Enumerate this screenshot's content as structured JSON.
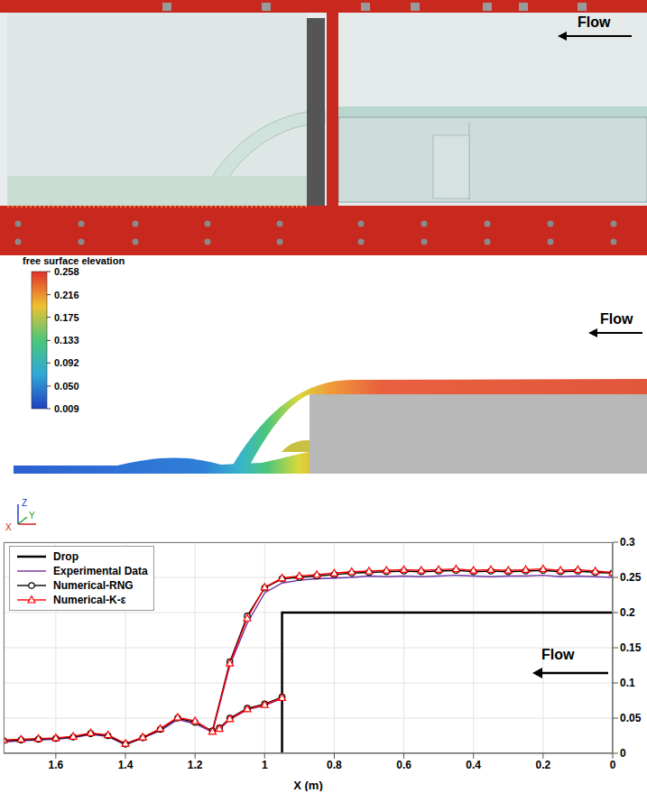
{
  "photo": {
    "annotation": "Flow"
  },
  "simulation": {
    "colorbar": {
      "title": "free surface elevation",
      "range": [
        0.009,
        0.258
      ],
      "ticks": [
        0.258,
        0.216,
        0.175,
        0.133,
        0.092,
        {
          "value": 0.05,
          "label": "0.050"
        },
        0.009
      ]
    },
    "annotation": "Flow",
    "axis_triad": [
      "Z",
      "X",
      "Y"
    ]
  },
  "chart_data": {
    "type": "line",
    "x_label": "X (m)",
    "annotation": "Flow",
    "xlim": [
      1.75,
      0
    ],
    "xticks": [
      1.6,
      1.4,
      1.2,
      1,
      0.8,
      0.6,
      0.4,
      0.2,
      0
    ],
    "ylim": [
      0,
      0.3
    ],
    "yticks": [
      0,
      0.05,
      0.1,
      0.15,
      0.2,
      0.25,
      0.3
    ],
    "grid": true,
    "legend": "top-left",
    "x": [
      0,
      0.05,
      0.1,
      0.15,
      0.2,
      0.25,
      0.3,
      0.35,
      0.4,
      0.45,
      0.5,
      0.55,
      0.6,
      0.65,
      0.7,
      0.75,
      0.8,
      0.85,
      0.9,
      0.95,
      1,
      1.05,
      1.1,
      1.15,
      1.2,
      1.25,
      1.3,
      1.35,
      1.4,
      1.45,
      1.5,
      1.55,
      1.6,
      1.65,
      1.7,
      1.75,
      null,
      0.95,
      1,
      1.05,
      1.1,
      1.13
    ],
    "series": [
      {
        "name": "Drop",
        "color": "#000000",
        "line_style": "thick",
        "x": [
          0,
          0.95,
          0.95
        ],
        "values": [
          0.2,
          0.2,
          0
        ]
      },
      {
        "name": "Experimental Data",
        "color": "#7030a0",
        "values": [
          0.25,
          0.251,
          0.252,
          0.251,
          0.253,
          0.252,
          0.252,
          0.251,
          0.252,
          0.253,
          0.252,
          0.251,
          0.252,
          0.251,
          0.252,
          0.25,
          0.249,
          0.248,
          0.246,
          0.242,
          0.228,
          0.185,
          0.125,
          0.03,
          0.042,
          0.048,
          0.032,
          0.022,
          0.012,
          0.024,
          0.027,
          0.022,
          0.02,
          0.019,
          0.018,
          0.016,
          null,
          0.078,
          0.068,
          0.062,
          0.048,
          0.034
        ]
      },
      {
        "name": "Numerical-RNG",
        "color": "#000000",
        "marker": "circle",
        "values": [
          0.256,
          0.257,
          0.259,
          0.258,
          0.26,
          0.259,
          0.258,
          0.259,
          0.258,
          0.26,
          0.259,
          0.258,
          0.259,
          0.258,
          0.257,
          0.256,
          0.254,
          0.252,
          0.25,
          0.248,
          0.235,
          0.195,
          0.13,
          0.032,
          0.044,
          0.05,
          0.034,
          0.022,
          0.013,
          0.025,
          0.028,
          0.023,
          0.021,
          0.02,
          0.019,
          0.018,
          null,
          0.08,
          0.07,
          0.064,
          0.05,
          0.036
        ]
      },
      {
        "name": "Numerical-K-ε",
        "color": "#ff0000",
        "marker": "triangle",
        "values": [
          0.257,
          0.259,
          0.261,
          0.26,
          0.262,
          0.261,
          0.26,
          0.261,
          0.26,
          0.262,
          0.261,
          0.26,
          0.261,
          0.26,
          0.259,
          0.258,
          0.256,
          0.254,
          0.252,
          0.249,
          0.236,
          0.192,
          0.128,
          0.031,
          0.046,
          0.051,
          0.035,
          0.023,
          0.014,
          0.026,
          0.029,
          0.024,
          0.022,
          0.021,
          0.02,
          0.019,
          null,
          0.079,
          0.069,
          0.063,
          0.049,
          0.035
        ]
      }
    ]
  }
}
